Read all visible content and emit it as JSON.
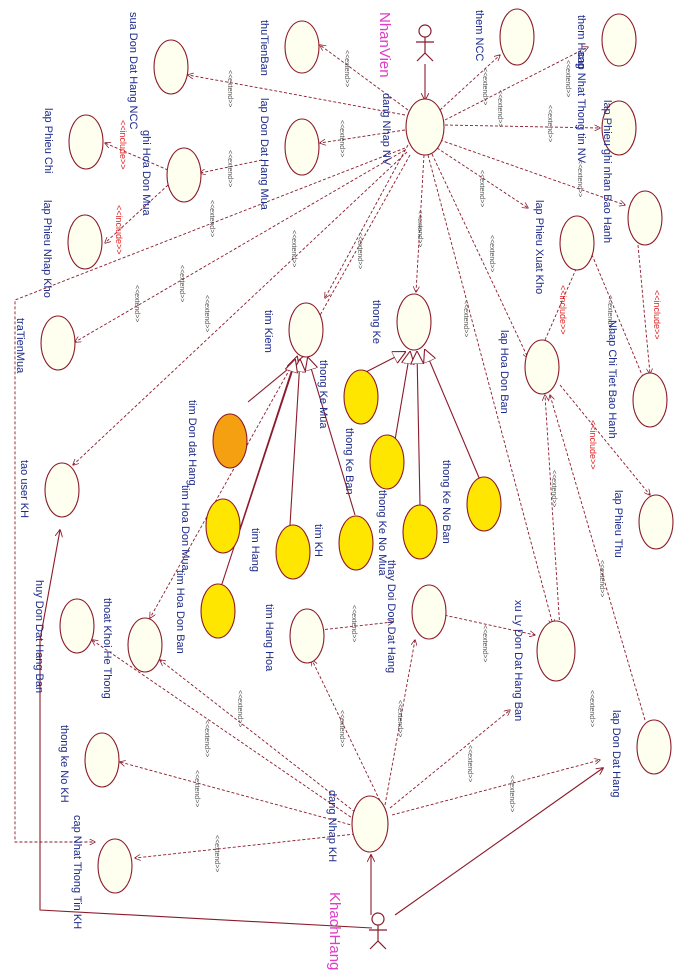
{
  "actors": {
    "nhanvien": "NhanVien",
    "khachhang": "KhachHang"
  },
  "usecases": {
    "dangNhapNV": "dang Nhap NV",
    "dangNhapKH": "dang Nhap KH",
    "themHang": "them Hang",
    "themNCC": "them NCC",
    "thuTienBan": "thuTienBan",
    "suaDonDatHangNCC": "sua Don Dat Hang NCC",
    "capNhatThongTinNV": "cap Nhat Thong tin NV",
    "lapDonDatHangMua": "lap Don Dat Hang Mua",
    "lapPhieuChi": "lap Phieu Chi",
    "ghiHoaDonMua": "ghi Hoa Don Mua",
    "lapPhieuGhiNhanBaoHanh": "lap Phieu ghi nhan Bao Hanh",
    "lapPhieuXuatKho": "lap Phieu Xuat Kho",
    "lapPhieuNhapKho": "lap Phieu Nhap Kho",
    "traTienMua": "traTienMua",
    "timKiem": "tim Kiem",
    "thongKe": "thong Ke",
    "lapHoaDonBan": "lap Hoa Don Ban",
    "nhapChiTietBaoHanh": "Nhap Chi Tiet Bao Hanh",
    "thongKeMua": "thong Ke Mua",
    "thongKeBan": "thong Ke Ban",
    "thongKeNoBan": "thong Ke  No Ban",
    "thongKeNoMua": "thong Ke No Mua",
    "timDonDatHang": "tim Don dat Hang",
    "timHoaDonMua": "tim Hoa Don Mua",
    "timHang": "tim Hang",
    "timKH": "tim KH",
    "timHoaDonBan": "tim Hoa Don Ban",
    "taoUserKH": "tao user KH",
    "lapPhieuThu": "lap Phieu Thu",
    "thoatKhoiHeThong": "thoat Khoi He Thong",
    "timHangHoa": "tim Hang Hoa",
    "thayDoiDonDatHang": "thay Doi Don Dat Hang",
    "xuLyDonDatHangBan": "xu Ly Don Dat Hang Ban",
    "huyDonDatHangBan": "huy Don Dat Hang Ban",
    "lapDonDatHang": "lap Don Dat Hang",
    "thongKeNoKH": "thong ke No KH",
    "capNhatThongTinKH": "cap Nhat Thong Tin KH"
  },
  "stereotypes": {
    "extend": "<<extend>>",
    "include": "<<include>>"
  }
}
